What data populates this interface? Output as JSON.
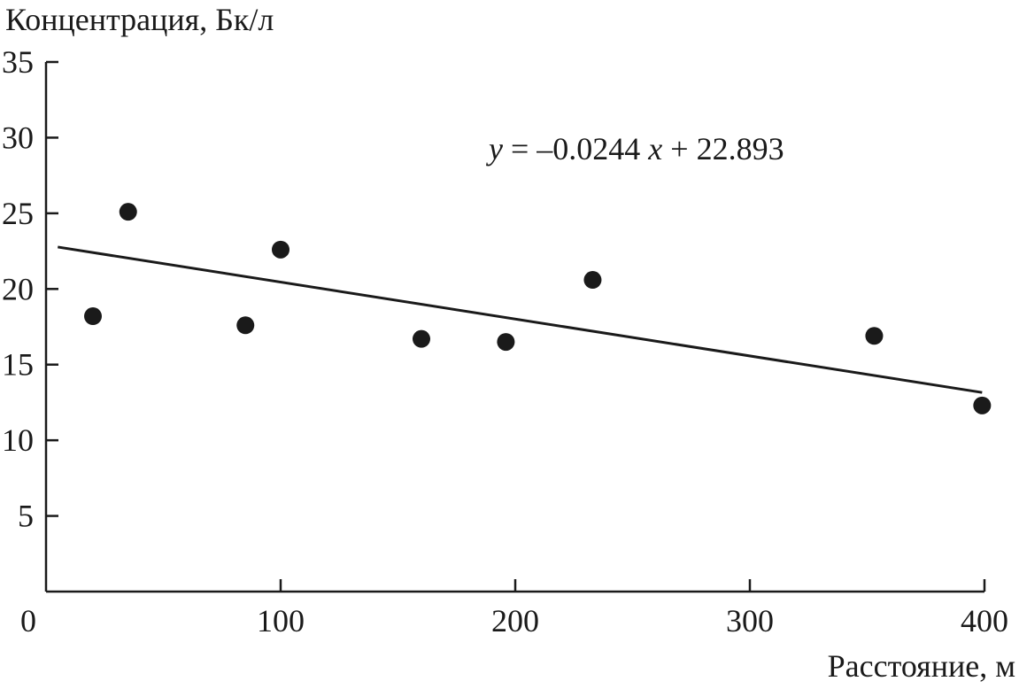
{
  "chart_data": {
    "type": "scatter",
    "ylabel": "Концентрация, Бк/л",
    "xlabel": "Расстояние, м",
    "xlim": [
      0,
      400
    ],
    "ylim": [
      0,
      35
    ],
    "x_ticks": [
      "0",
      "100",
      "200",
      "300",
      "400"
    ],
    "y_ticks": [
      "5",
      "10",
      "15",
      "20",
      "25",
      "30",
      "35"
    ],
    "grid": false,
    "series": [
      {
        "points": [
          {
            "x": 20,
            "y": 18.2
          },
          {
            "x": 35,
            "y": 25.1
          },
          {
            "x": 85,
            "y": 17.6
          },
          {
            "x": 100,
            "y": 22.6
          },
          {
            "x": 160,
            "y": 16.7
          },
          {
            "x": 196,
            "y": 16.5
          },
          {
            "x": 233,
            "y": 20.6
          },
          {
            "x": 353,
            "y": 16.9
          },
          {
            "x": 399,
            "y": 12.3
          }
        ]
      }
    ],
    "trendline": {
      "slope": -0.0244,
      "intercept": 22.893,
      "x_range": [
        5,
        399
      ]
    },
    "equation": {
      "y_var": "y",
      "middle": " = –0.0244",
      "x_var": "x",
      "tail": " + 22.893"
    }
  }
}
